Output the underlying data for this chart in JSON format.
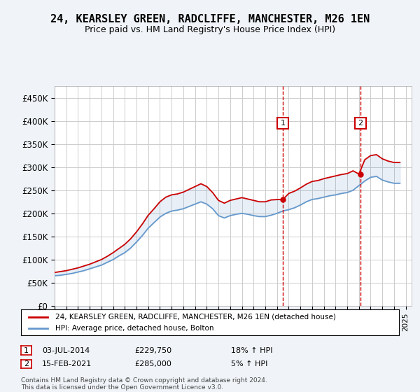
{
  "title": "24, KEARSLEY GREEN, RADCLIFFE, MANCHESTER, M26 1EN",
  "subtitle": "Price paid vs. HM Land Registry's House Price Index (HPI)",
  "ylabel_ticks": [
    "£0",
    "£50K",
    "£100K",
    "£150K",
    "£200K",
    "£250K",
    "£300K",
    "£350K",
    "£400K",
    "£450K"
  ],
  "ytick_values": [
    0,
    50000,
    100000,
    150000,
    200000,
    250000,
    300000,
    350000,
    400000,
    450000
  ],
  "ylim": [
    0,
    475000
  ],
  "xlim_start": 1995.0,
  "xlim_end": 2025.5,
  "legend_line1": "24, KEARSLEY GREEN, RADCLIFFE, MANCHESTER, M26 1EN (detached house)",
  "legend_line2": "HPI: Average price, detached house, Bolton",
  "marker1_label": "1",
  "marker1_date": "03-JUL-2014",
  "marker1_price": "£229,750",
  "marker1_hpi": "18% ↑ HPI",
  "marker1_x": 2014.5,
  "marker1_y": 229750,
  "marker2_label": "2",
  "marker2_date": "15-FEB-2021",
  "marker2_price": "£285,000",
  "marker2_hpi": "5% ↑ HPI",
  "marker2_x": 2021.12,
  "marker2_y": 285000,
  "footer": "Contains HM Land Registry data © Crown copyright and database right 2024.\nThis data is licensed under the Open Government Licence v3.0.",
  "hpi_color": "#6699cc",
  "price_color": "#cc0000",
  "marker_color": "#cc0000",
  "background_color": "#f0f4f8",
  "plot_bg": "#ffffff",
  "grid_color": "#cccccc"
}
